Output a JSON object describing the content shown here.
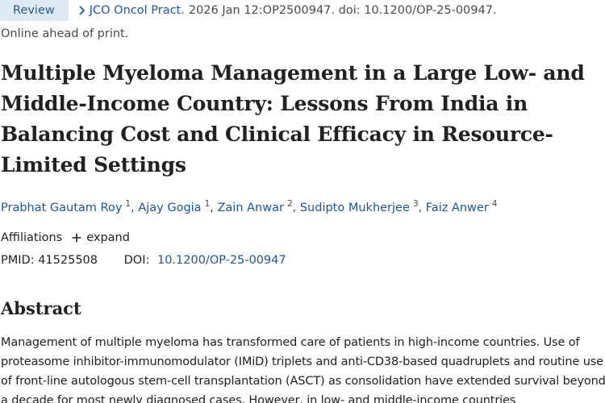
{
  "header": {
    "badge": "Review",
    "journal": "JCO Oncol Pract.",
    "citation": "2026 Jan 12:OP2500947. doi: 10.1200/OP-25-00947.",
    "status": "Online ahead of print."
  },
  "article": {
    "title": "Multiple Myeloma Management in a Large Low- and Middle-Income Country: Lessons From India in Balancing Cost and Clinical Efficacy in Resource-Limited Settings"
  },
  "authors": [
    {
      "name": "Prabhat Gautam Roy",
      "aff": "1"
    },
    {
      "name": "Ajay Gogia",
      "aff": "1"
    },
    {
      "name": "Zain Anwar",
      "aff": "2"
    },
    {
      "name": "Sudipto Mukherjee",
      "aff": "3"
    },
    {
      "name": "Faiz Anwer",
      "aff": "4"
    }
  ],
  "affiliations": {
    "label": "Affiliations",
    "expand_label": "expand"
  },
  "identifiers": {
    "pmid_label": "PMID:",
    "pmid": "41525508",
    "doi_label": "DOI:",
    "doi": "10.1200/OP-25-00947"
  },
  "abstract": {
    "heading": "Abstract",
    "text": "Management of multiple myeloma has transformed care of patients in high-income countries. Use of proteasome inhibitor-immunomodulator (IMiD) triplets and anti-CD38-based quadruplets and routine use of front-line autologous stem-cell transplantation (ASCT) as consolidation have extended survival beyond a decade for most newly diagnosed cases. However, in low- and middle-income countries"
  },
  "colors": {
    "link": "#205493",
    "badge_bg": "#dfe9f3"
  }
}
